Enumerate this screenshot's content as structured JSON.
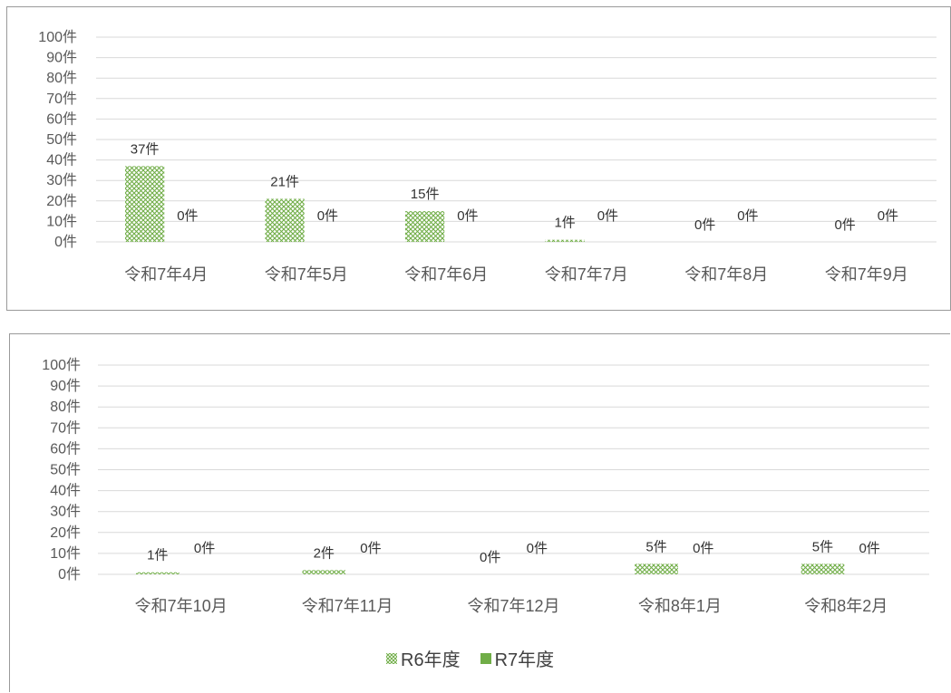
{
  "chart_data": [
    {
      "type": "bar",
      "categories": [
        "令和7年4月",
        "令和7年5月",
        "令和7年6月",
        "令和7年7月",
        "令和7年8月",
        "令和7年9月"
      ],
      "series": [
        {
          "name": "R6年度",
          "values": [
            37,
            21,
            15,
            1,
            0,
            0
          ],
          "labels": [
            "37件",
            "21件",
            "15件",
            "1件",
            "0件",
            "0件"
          ]
        },
        {
          "name": "R7年度",
          "values": [
            0,
            0,
            0,
            0,
            0,
            0
          ],
          "labels": [
            "0件",
            "0件",
            "0件",
            "0件",
            "0件",
            "0件"
          ]
        }
      ],
      "yticks": [
        "0件",
        "10件",
        "20件",
        "30件",
        "40件",
        "50件",
        "60件",
        "70件",
        "80件",
        "90件",
        "100件"
      ],
      "ylim": [
        0,
        100
      ],
      "grid": true
    },
    {
      "type": "bar",
      "categories": [
        "令和7年10月",
        "令和7年11月",
        "令和7年12月",
        "令和8年1月",
        "令和8年2月"
      ],
      "series": [
        {
          "name": "R6年度",
          "values": [
            1,
            2,
            0,
            5,
            5
          ],
          "labels": [
            "1件",
            "2件",
            "0件",
            "5件",
            "5件"
          ]
        },
        {
          "name": "R7年度",
          "values": [
            0,
            0,
            0,
            0,
            0
          ],
          "labels": [
            "0件",
            "0件",
            "0件",
            "0件",
            "0件"
          ]
        }
      ],
      "yticks": [
        "0件",
        "10件",
        "20件",
        "30件",
        "40件",
        "50件",
        "60件",
        "70件",
        "80件",
        "90件",
        "100件"
      ],
      "ylim": [
        0,
        100
      ],
      "grid": true,
      "legend": "bottom-center"
    }
  ],
  "legend": {
    "items": [
      {
        "label": "R6年度",
        "icon": "crosshatch-swatch"
      },
      {
        "label": "R7年度",
        "icon": "solid-swatch"
      }
    ]
  },
  "colors": {
    "r6": "#70ad47",
    "r7": "#70ad47",
    "grid": "#d9d9d9"
  }
}
